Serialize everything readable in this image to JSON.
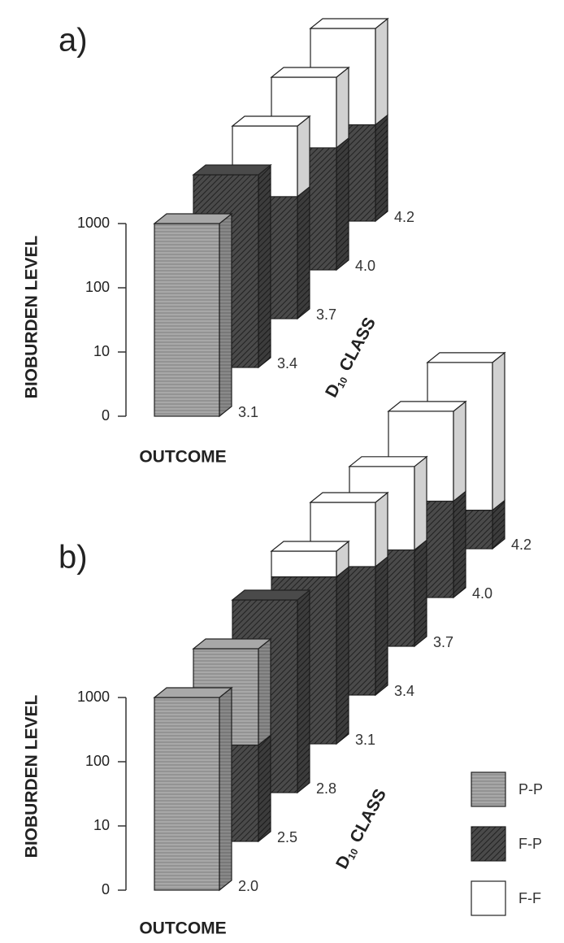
{
  "chart_data": [
    {
      "type": "bar3d",
      "stacked": true,
      "panel_label": "a)",
      "y_label": "BIOBURDEN LEVEL",
      "outcome_label": "OUTCOME",
      "x_label": [
        "D",
        "10",
        "CLASS"
      ],
      "categories": [
        "3.1",
        "3.4",
        "3.7",
        "4.0",
        "4.2"
      ],
      "series": [
        {
          "name": "P-P",
          "color": "#a8a8a8",
          "values": [
            3,
            null,
            null,
            null,
            null
          ]
        },
        {
          "name": "F-P",
          "color": "#4a4a4a",
          "values": [
            null,
            3,
            1.9,
            1.9,
            1.5
          ]
        },
        {
          "name": "F-F",
          "color": "#ffffff",
          "values": [
            null,
            null,
            1.1,
            1.1,
            1.5
          ]
        }
      ],
      "stack_order": [
        1,
        0,
        2
      ],
      "ylim": [
        0,
        3
      ],
      "yticks": [
        0,
        {
          "value": 1,
          "label": "10"
        },
        {
          "value": 2,
          "label": "100"
        },
        {
          "value": 3,
          "label": "1000"
        }
      ]
    },
    {
      "type": "bar3d",
      "stacked": true,
      "panel_label": "b)",
      "y_label": "BIOBURDEN LEVEL",
      "outcome_label": "OUTCOME",
      "x_label": [
        "D",
        "10",
        "CLASS"
      ],
      "categories": [
        "2.0",
        "2.5",
        "2.8",
        "3.1",
        "3.4",
        "3.7",
        "4.0",
        "4.2"
      ],
      "series": [
        {
          "name": "P-P",
          "color": "#a8a8a8",
          "values": [
            3,
            1.5,
            null,
            null,
            null,
            null,
            null,
            null
          ]
        },
        {
          "name": "F-P",
          "color": "#4a4a4a",
          "values": [
            null,
            1.5,
            3,
            2.6,
            2.0,
            1.5,
            1.5,
            0.6
          ]
        },
        {
          "name": "F-F",
          "color": "#ffffff",
          "values": [
            null,
            null,
            null,
            0.4,
            1.0,
            1.3,
            1.4,
            2.3
          ]
        }
      ],
      "stack_order": [
        1,
        0,
        2
      ],
      "ylim": [
        0,
        3
      ],
      "yticks": [
        0,
        {
          "value": 1,
          "label": "10"
        },
        {
          "value": 2,
          "label": "100"
        },
        {
          "value": 3,
          "label": "1000"
        }
      ],
      "legend": "lower right"
    }
  ]
}
